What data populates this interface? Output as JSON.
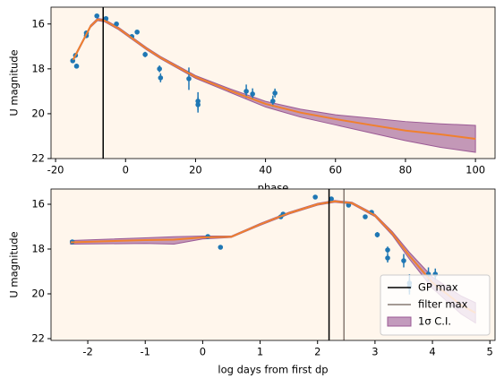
{
  "chart_data": [
    {
      "type": "scatter",
      "xlabel": "phase",
      "ylabel": "U magnitude",
      "xlim": [
        -21.3,
        105.6
      ],
      "ylim": [
        22,
        15.25
      ],
      "xticks": [
        -20,
        0,
        20,
        40,
        60,
        80,
        100
      ],
      "yticks": [
        16,
        18,
        20,
        22
      ],
      "points": {
        "color": "#1f77b4",
        "x": [
          -15.1,
          -14.3,
          -14.0,
          -11.2,
          -11.2,
          -8.2,
          -5.6,
          -2.6,
          1.8,
          3.3,
          5.6,
          9.7,
          10.0,
          18.1,
          20.7,
          20.7,
          34.5,
          36.3,
          42.1,
          42.7
        ],
        "values": [
          17.64,
          17.4,
          17.88,
          16.52,
          16.4,
          15.64,
          15.76,
          16.0,
          16.56,
          16.36,
          17.36,
          18.0,
          18.4,
          18.44,
          19.44,
          19.6,
          19.0,
          19.12,
          19.44,
          19.08
        ],
        "errors": [
          0.08,
          0.08,
          0.1,
          0.08,
          0.08,
          0.06,
          0.06,
          0.06,
          0.07,
          0.07,
          0.12,
          0.15,
          0.2,
          0.5,
          0.4,
          0.35,
          0.3,
          0.25,
          0.25,
          0.2
        ]
      },
      "curve": {
        "color": "#f0802e",
        "x": [
          -15,
          -12,
          -10,
          -8,
          -6,
          -2,
          2,
          6,
          10,
          20,
          30,
          40,
          50,
          60,
          70,
          80,
          90,
          100
        ],
        "values": [
          17.6,
          16.7,
          16.1,
          15.8,
          15.85,
          16.2,
          16.65,
          17.1,
          17.5,
          18.36,
          18.98,
          19.56,
          19.95,
          20.24,
          20.5,
          20.75,
          20.92,
          21.12
        ]
      },
      "band": {
        "color": "#9b5a95",
        "x": [
          -15,
          -12,
          -10,
          -8,
          -6,
          -2,
          2,
          6,
          10,
          20,
          30,
          40,
          50,
          60,
          70,
          80,
          90,
          100
        ],
        "lower": [
          17.55,
          16.65,
          16.05,
          15.75,
          15.8,
          16.15,
          16.6,
          17.05,
          17.45,
          18.3,
          18.9,
          19.45,
          19.8,
          20.05,
          20.2,
          20.35,
          20.45,
          20.52
        ],
        "upper": [
          17.65,
          16.75,
          16.15,
          15.85,
          15.9,
          16.25,
          16.7,
          17.15,
          17.55,
          18.42,
          19.06,
          19.7,
          20.15,
          20.5,
          20.85,
          21.2,
          21.5,
          21.72
        ]
      },
      "vlines": [
        {
          "x": -6.4,
          "color": "#000000"
        }
      ]
    },
    {
      "type": "scatter",
      "xlabel": "log days from first dp",
      "ylabel": "U magnitude",
      "xlim": [
        -2.64,
        5.09
      ],
      "ylim": [
        22.08,
        15.32
      ],
      "xticks": [
        -2,
        -1,
        0,
        1,
        2,
        3,
        4,
        5
      ],
      "yticks": [
        16,
        18,
        20,
        22
      ],
      "legend": "lower right",
      "points": {
        "color": "#1f77b4",
        "x": [
          -2.27,
          0.09,
          0.31,
          1.36,
          1.4,
          1.96,
          2.24,
          2.54,
          2.83,
          2.94,
          3.04,
          3.22,
          3.22,
          3.5,
          3.6,
          3.6,
          3.93,
          4.05
        ],
        "values": [
          17.68,
          17.44,
          17.92,
          16.56,
          16.44,
          15.68,
          15.76,
          16.04,
          16.56,
          16.36,
          17.36,
          18.04,
          18.4,
          18.52,
          19.52,
          19.68,
          19.12,
          19.12
        ],
        "errors": [
          0.08,
          0.07,
          0.1,
          0.08,
          0.08,
          0.06,
          0.06,
          0.06,
          0.07,
          0.07,
          0.12,
          0.15,
          0.2,
          0.3,
          0.4,
          0.35,
          0.3,
          0.25
        ]
      },
      "curve": {
        "color": "#f0802e",
        "x": [
          -2.3,
          -1,
          -0.5,
          0,
          0.5,
          1,
          1.5,
          2,
          2.3,
          2.6,
          3,
          3.3,
          3.6,
          4,
          4.5,
          4.75
        ],
        "values": [
          17.7,
          17.6,
          17.58,
          17.48,
          17.45,
          16.9,
          16.4,
          16.0,
          15.87,
          15.95,
          16.5,
          17.3,
          18.3,
          19.5,
          20.5,
          20.85
        ]
      },
      "band": {
        "color": "#9b5a95",
        "x": [
          -2.3,
          -1,
          -0.5,
          0,
          0.5,
          1,
          1.5,
          2,
          2.3,
          2.6,
          3,
          3.3,
          3.6,
          4,
          4.5,
          4.75
        ],
        "lower": [
          17.62,
          17.5,
          17.45,
          17.42,
          17.42,
          16.86,
          16.36,
          15.96,
          15.83,
          15.91,
          16.45,
          17.22,
          18.15,
          19.25,
          20.1,
          20.4
        ],
        "upper": [
          17.78,
          17.75,
          17.78,
          17.55,
          17.48,
          16.94,
          16.44,
          16.04,
          15.91,
          15.99,
          16.55,
          17.38,
          18.45,
          19.75,
          20.9,
          21.3
        ]
      },
      "vlines": [
        {
          "name": "GP max",
          "x": 2.2,
          "color": "#000000"
        },
        {
          "name": "filter max",
          "x": 2.46,
          "color": "#857a72"
        }
      ],
      "band_name": "1σ C.I."
    }
  ]
}
